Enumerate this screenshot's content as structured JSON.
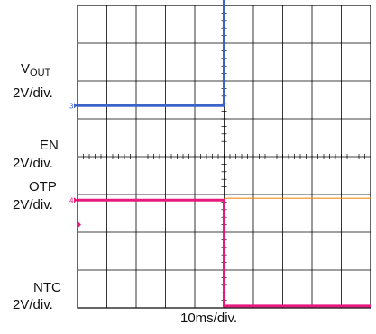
{
  "labels": {
    "vout_main": "V",
    "vout_sub": "OUT",
    "vout_scale": "2V/div.",
    "en": "EN",
    "en_scale": "2V/div.",
    "otp": "OTP",
    "otp_scale": "2V/div.",
    "ntc": "NTC",
    "ntc_scale": "2V/div.",
    "time_scale": "10ms/div."
  },
  "chart_data": {
    "type": "line",
    "grid": true,
    "x_divisions": 10,
    "y_divisions": 8,
    "xlabel": "10ms/div.",
    "series": [
      {
        "name": "VOUT",
        "color": "#f28a1a",
        "marker": "1",
        "points": [
          [
            0,
            7.75
          ],
          [
            5,
            7.6
          ],
          [
            10,
            6.95
          ]
        ]
      },
      {
        "name": "EN",
        "color": "#3cb44b",
        "marker": "2",
        "points": [
          [
            0,
            5.0
          ],
          [
            10,
            5.0
          ]
        ]
      },
      {
        "name": "OTP",
        "color": "#3c64c8",
        "marker": "3",
        "points": [
          [
            0,
            1.35
          ],
          [
            5,
            1.35
          ],
          [
            5,
            4.2
          ],
          [
            10,
            4.2
          ]
        ]
      },
      {
        "name": "NTC",
        "color": "#e8197d",
        "marker": "4",
        "points": [
          [
            0,
            -1.15
          ],
          [
            5,
            -1.15
          ],
          [
            5,
            -3.95
          ],
          [
            10,
            -3.95
          ]
        ]
      },
      {
        "name": "NTC-ref",
        "color": "#f28a1a",
        "marker": "",
        "points": [
          [
            5,
            -1.1
          ],
          [
            10,
            -1.1
          ]
        ]
      }
    ]
  }
}
